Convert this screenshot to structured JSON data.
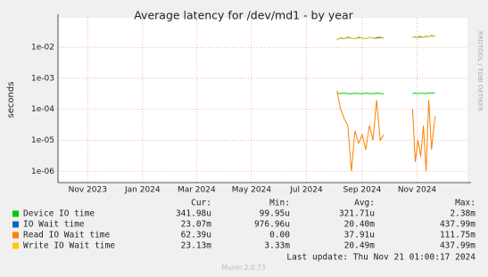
{
  "chart_data": {
    "type": "line",
    "title": "Average latency for /dev/md1 - by year",
    "y_label": "seconds",
    "log_scale": true,
    "grid": true,
    "x": [
      "2024-08-04",
      "2024-08-08",
      "2024-08-12",
      "2024-08-16",
      "2024-08-20",
      "2024-08-24",
      "2024-08-28",
      "2024-09-01",
      "2024-09-05",
      "2024-09-09",
      "2024-09-13",
      "2024-09-17",
      "2024-09-21",
      "2024-09-25",
      "2024-10-10",
      "2024-10-27",
      "2024-10-30",
      "2024-11-02",
      "2024-11-05",
      "2024-11-08",
      "2024-11-11",
      "2024-11-14",
      "2024-11-17",
      "2024-11-21"
    ],
    "xlim": [
      "2023-09-29",
      "2024-12-27"
    ],
    "xticks": [
      {
        "value": "2023-11-01",
        "label": "Nov 2023"
      },
      {
        "value": "2024-01-01",
        "label": "Jan 2024"
      },
      {
        "value": "2024-03-01",
        "label": "Mar 2024"
      },
      {
        "value": "2024-05-01",
        "label": "May 2024"
      },
      {
        "value": "2024-07-01",
        "label": "Jul 2024"
      },
      {
        "value": "2024-09-01",
        "label": "Sep 2024"
      },
      {
        "value": "2024-11-01",
        "label": "Nov 2024"
      }
    ],
    "ylim": [
      4.3e-07,
      0.09
    ],
    "yticks": [
      {
        "value": 1e-06,
        "label": "1e-06"
      },
      {
        "value": 1e-05,
        "label": "1e-05"
      },
      {
        "value": 0.0001,
        "label": "1e-04"
      },
      {
        "value": 0.001,
        "label": "1e-03"
      },
      {
        "value": 0.01,
        "label": "1e-02"
      }
    ],
    "series": [
      {
        "name": "Device IO time",
        "color": "#00cc00",
        "values": [
          0.00033,
          0.00032,
          0.00033,
          0.00032,
          0.00032,
          0.00033,
          0.00032,
          0.00032,
          0.00033,
          0.00032,
          0.00032,
          0.00033,
          0.00032,
          0.00032,
          null,
          0.00032,
          0.00033,
          0.00032,
          0.00033,
          0.00033,
          0.00032,
          0.00034,
          0.00033,
          0.00034
        ],
        "stats": [
          "341.98u",
          "99.95u",
          "321.71u",
          "2.38m"
        ]
      },
      {
        "name": "IO Wait time",
        "color": "#0066b3",
        "values": [
          0.018,
          0.02,
          0.019,
          0.021,
          0.02,
          0.019,
          0.021,
          0.02,
          0.019,
          0.021,
          0.02,
          0.02,
          0.021,
          0.02,
          null,
          0.021,
          0.022,
          0.021,
          0.022,
          0.021,
          0.023,
          0.022,
          0.024,
          0.023
        ],
        "stats": [
          "23.07m",
          "976.96u",
          "20.40m",
          "437.99m"
        ]
      },
      {
        "name": "Read IO Wait time",
        "color": "#ff8000",
        "values": [
          0.0004,
          0.0001,
          5e-05,
          3e-05,
          1e-06,
          2e-05,
          8e-06,
          1.5e-05,
          5e-06,
          3e-05,
          1e-05,
          0.0002,
          1e-05,
          1.5e-05,
          null,
          0.0001,
          2e-06,
          1e-05,
          3e-06,
          3e-05,
          1e-06,
          0.0002,
          5e-06,
          6e-05
        ],
        "stats": [
          "62.39u",
          "0.00",
          "37.91u",
          "111.75m"
        ]
      },
      {
        "name": "Write IO Wait time",
        "color": "#ffcc00",
        "values": [
          0.017,
          0.021,
          0.019,
          0.022,
          0.02,
          0.019,
          0.022,
          0.02,
          0.019,
          0.021,
          0.02,
          0.021,
          0.022,
          0.02,
          null,
          0.022,
          0.021,
          0.022,
          0.023,
          0.021,
          0.024,
          0.022,
          0.025,
          0.023
        ],
        "stats": [
          "23.13m",
          "3.33m",
          "20.49m",
          "437.99m"
        ]
      }
    ],
    "stat_headers": [
      "Cur:",
      "Min:",
      "Avg:",
      "Max:"
    ],
    "last_update": "Last update: Thu Nov 21 01:00:17 2024",
    "version": "Munin 2.0.73",
    "watermark": "RRDTOOL / TOBI OETIKER"
  }
}
